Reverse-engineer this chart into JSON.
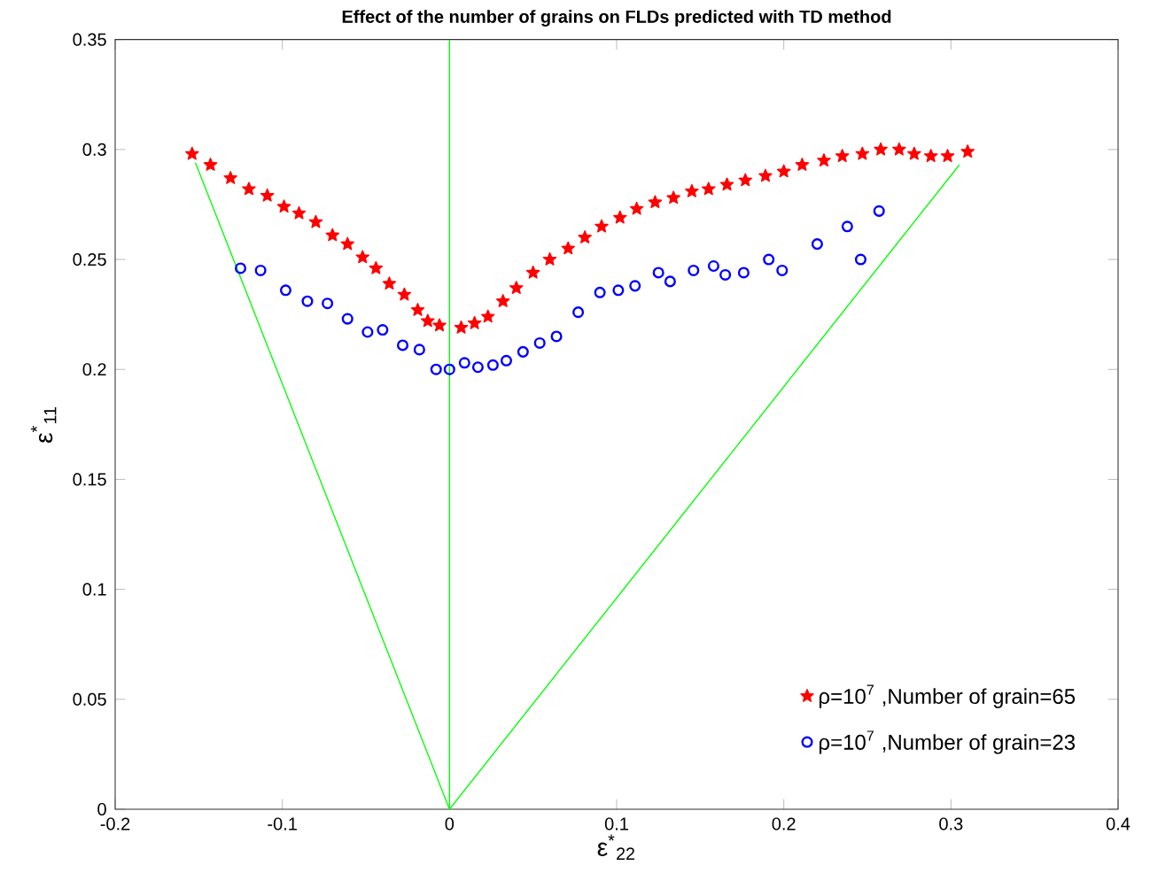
{
  "chart_data": {
    "type": "scatter",
    "title": "Effect of the number of grains on FLDs predicted with TD method",
    "xlabel": "ε$^{*}$$_{22}$",
    "ylabel": "ε$^{*}$$_{11}$",
    "xlim": [
      -0.2,
      0.4
    ],
    "ylim": [
      0,
      0.35
    ],
    "xticks": [
      -0.2,
      -0.1,
      0,
      0.1,
      0.2,
      0.3,
      0.4
    ],
    "yticks": [
      0,
      0.05,
      0.1,
      0.15,
      0.2,
      0.25,
      0.3,
      0.35
    ],
    "legend": "bottom right",
    "grid": false,
    "ref_lines": [
      {
        "axis": "x",
        "value": 0,
        "color": "#00ff00"
      }
    ],
    "series": [
      {
        "type": "line",
        "color": "#00ff00",
        "marker": "none",
        "x": [
          -0.152,
          0,
          0.305
        ],
        "values": [
          0.294,
          0,
          0.293
        ]
      },
      {
        "name": "ρ=10$^{7}$ ,Number of grain=65",
        "color": "#ff0000",
        "marker": "star",
        "x": [
          -0.154,
          -0.143,
          -0.131,
          -0.12,
          -0.109,
          -0.099,
          -0.09,
          -0.08,
          -0.07,
          -0.061,
          -0.052,
          -0.044,
          -0.036,
          -0.027,
          -0.019,
          -0.013,
          -0.006,
          0.007,
          0.015,
          0.023,
          0.032,
          0.04,
          0.05,
          0.06,
          0.071,
          0.081,
          0.091,
          0.102,
          0.112,
          0.123,
          0.134,
          0.145,
          0.155,
          0.166,
          0.177,
          0.189,
          0.2,
          0.211,
          0.224,
          0.235,
          0.247,
          0.258,
          0.269,
          0.278,
          0.288,
          0.298,
          0.31
        ],
        "values": [
          0.298,
          0.293,
          0.287,
          0.282,
          0.279,
          0.274,
          0.271,
          0.267,
          0.261,
          0.257,
          0.251,
          0.246,
          0.239,
          0.234,
          0.227,
          0.222,
          0.22,
          0.219,
          0.221,
          0.224,
          0.231,
          0.237,
          0.244,
          0.25,
          0.255,
          0.26,
          0.265,
          0.269,
          0.273,
          0.276,
          0.278,
          0.281,
          0.282,
          0.284,
          0.286,
          0.288,
          0.29,
          0.293,
          0.295,
          0.297,
          0.298,
          0.3,
          0.3,
          0.298,
          0.297,
          0.297,
          0.299
        ]
      },
      {
        "name": "ρ=10$^{7}$ ,Number of grain=23",
        "color": "#0000ff",
        "marker": "circle",
        "x": [
          -0.125,
          -0.113,
          -0.098,
          -0.085,
          -0.073,
          -0.061,
          -0.049,
          -0.04,
          -0.028,
          -0.018,
          -0.008,
          0.0,
          0.009,
          0.017,
          0.026,
          0.034,
          0.044,
          0.054,
          0.064,
          0.077,
          0.09,
          0.101,
          0.111,
          0.125,
          0.132,
          0.146,
          0.158,
          0.165,
          0.176,
          0.191,
          0.199,
          0.22,
          0.238,
          0.246,
          0.257
        ],
        "values": [
          0.246,
          0.245,
          0.236,
          0.231,
          0.23,
          0.223,
          0.217,
          0.218,
          0.211,
          0.209,
          0.2,
          0.2,
          0.203,
          0.201,
          0.202,
          0.204,
          0.208,
          0.212,
          0.215,
          0.226,
          0.235,
          0.236,
          0.238,
          0.244,
          0.24,
          0.245,
          0.247,
          0.243,
          0.244,
          0.25,
          0.245,
          0.257,
          0.265,
          0.25,
          0.272
        ]
      }
    ]
  }
}
